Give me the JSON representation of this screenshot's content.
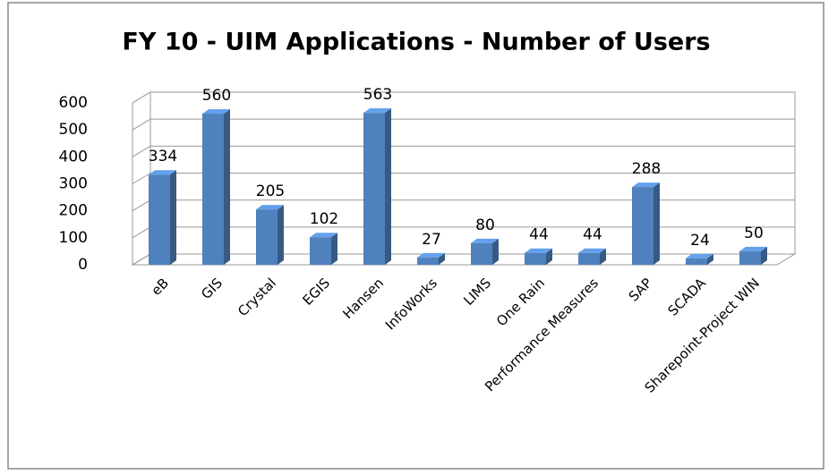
{
  "chart_data": {
    "type": "bar",
    "title": "FY 10 - UIM Applications - Number of Users",
    "categories": [
      "eB",
      "GIS",
      "Crystal",
      "EGIS",
      "Hansen",
      "InfoWorks",
      "LIMS",
      "One Rain",
      "Performance Measures",
      "SAP",
      "SCADA",
      "Sharepoint-Project WIN"
    ],
    "values": [
      334,
      560,
      205,
      102,
      563,
      27,
      80,
      44,
      44,
      288,
      24,
      50
    ],
    "color": "#4f81bd",
    "ylim": [
      0,
      600
    ],
    "yticks": [
      0,
      100,
      200,
      300,
      400,
      500,
      600
    ],
    "grid": true
  }
}
